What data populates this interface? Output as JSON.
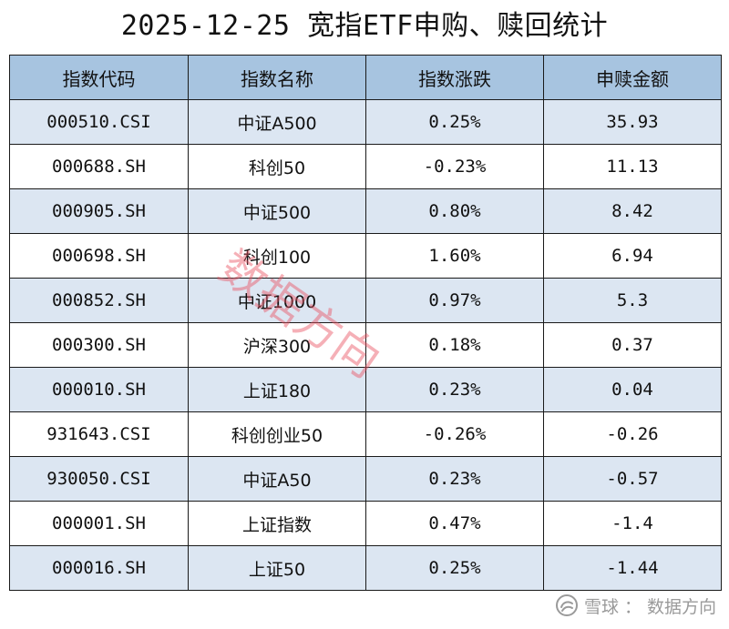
{
  "title": "2025-12-25 宽指ETF申购、赎回统计",
  "table": {
    "headers": [
      "指数代码",
      "指数名称",
      "指数涨跌",
      "申赎金额"
    ],
    "rows": [
      [
        "000510.CSI",
        "中证A500",
        "0.25%",
        "35.93"
      ],
      [
        "000688.SH",
        "科创50",
        "-0.23%",
        "11.13"
      ],
      [
        "000905.SH",
        "中证500",
        "0.80%",
        "8.42"
      ],
      [
        "000698.SH",
        "科创100",
        "1.60%",
        "6.94"
      ],
      [
        "000852.SH",
        "中证1000",
        "0.97%",
        "5.3"
      ],
      [
        "000300.SH",
        "沪深300",
        "0.18%",
        "0.37"
      ],
      [
        "000010.SH",
        "上证180",
        "0.23%",
        "0.04"
      ],
      [
        "931643.CSI",
        "科创创业50",
        "-0.26%",
        "-0.26"
      ],
      [
        "930050.CSI",
        "中证A50",
        "0.23%",
        "-0.57"
      ],
      [
        "000001.SH",
        "上证指数",
        "0.47%",
        "-1.4"
      ],
      [
        "000016.SH",
        "上证50",
        "0.25%",
        "-1.44"
      ]
    ]
  },
  "watermark": "数据方向",
  "footer": {
    "brand": "雪球",
    "separator": "：",
    "author": "数据方向",
    "icon": "snowball-logo-icon"
  },
  "colors": {
    "header_bg": "#a7c4e0",
    "row_alt_bg": "#dce6f2",
    "watermark": "#e8505f",
    "footer_text": "#9a9a9a"
  }
}
